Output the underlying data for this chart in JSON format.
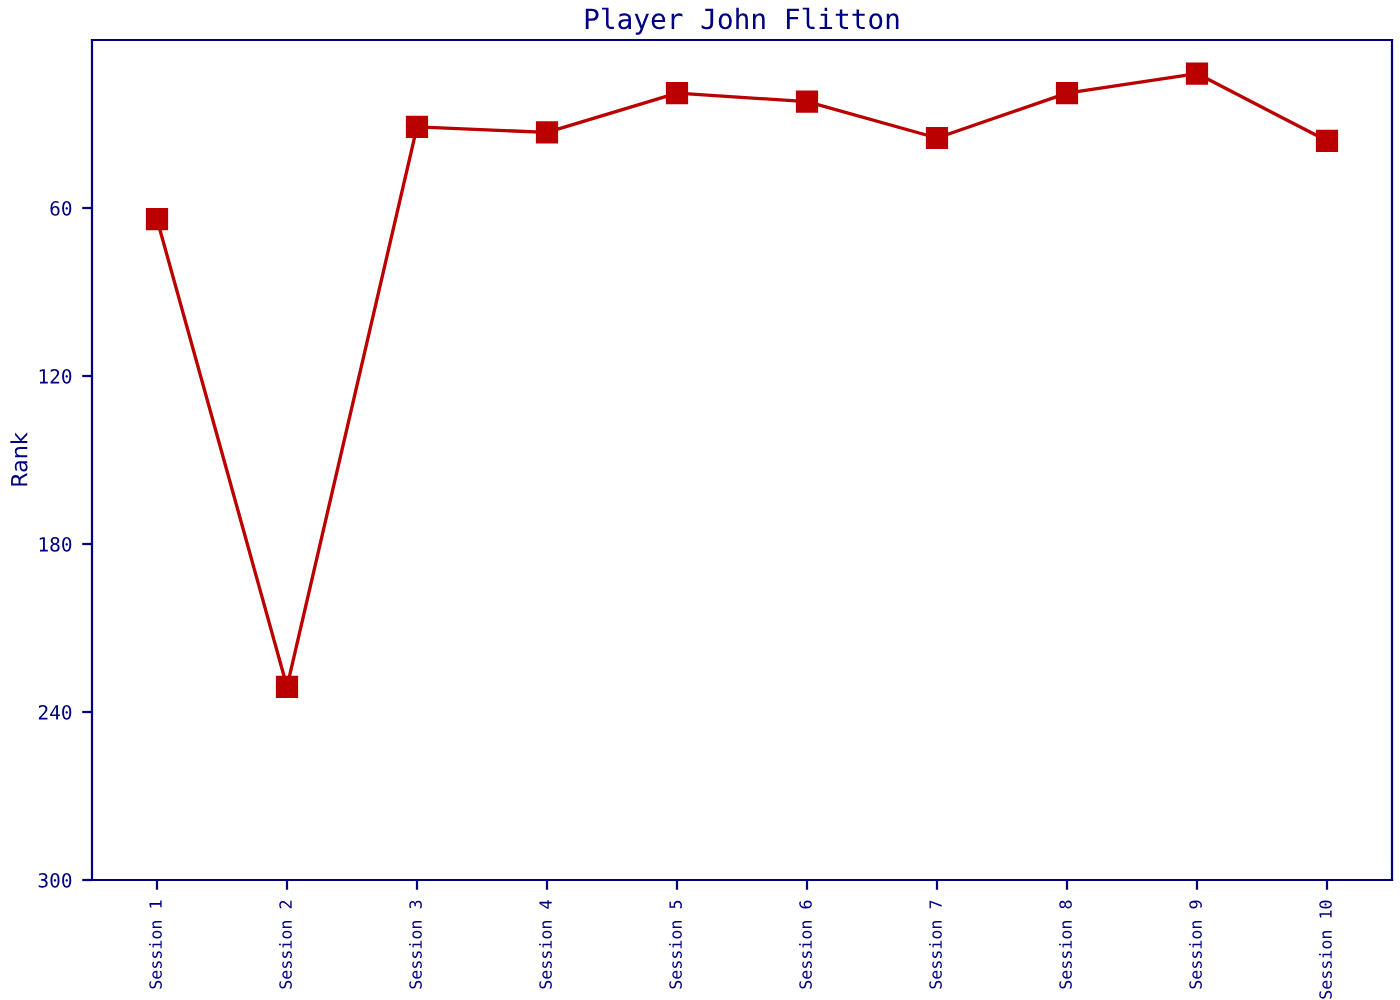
{
  "chart_data": {
    "type": "line",
    "title": "Player John Flitton",
    "ylabel": "Rank",
    "categories": [
      "Session 1",
      "Session 2",
      "Session 3",
      "Session 4",
      "Session 5",
      "Session 6",
      "Session 7",
      "Session 8",
      "Session 9",
      "Session 10"
    ],
    "series": [
      {
        "color": "#bb0000",
        "values": [
          64,
          231,
          31,
          33,
          19,
          22,
          35,
          19,
          12,
          36
        ]
      }
    ],
    "ylim": [
      300,
      0
    ],
    "yticks": [
      60,
      120,
      180,
      240,
      300
    ],
    "grid": false,
    "marker": "square",
    "line_style": "solid"
  }
}
